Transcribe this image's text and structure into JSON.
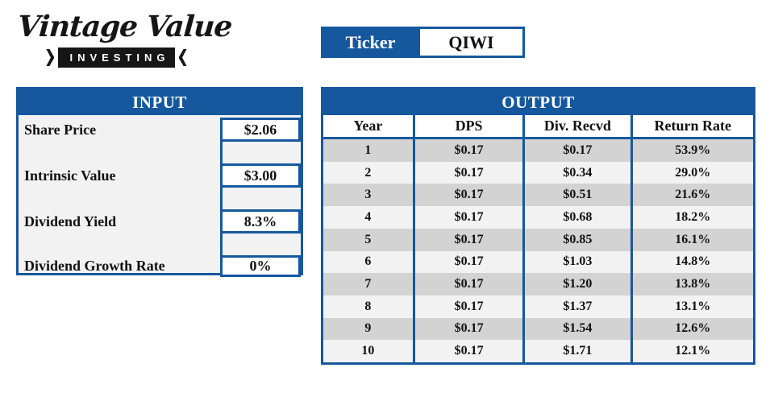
{
  "logo": {
    "title": "Vintage Value",
    "subtitle": "INVESTING"
  },
  "ticker": {
    "label": "Ticker",
    "value": "QIWI"
  },
  "input_panel": {
    "title": "INPUT",
    "fields": [
      {
        "label": "Share Price",
        "value": "$2.06"
      },
      {
        "label": "Intrinsic Value",
        "value": "$3.00"
      },
      {
        "label": "Dividend Yield",
        "value": "8.3%"
      },
      {
        "label": "Dividend Growth Rate",
        "value": "0%"
      }
    ]
  },
  "output_panel": {
    "title": "OUTPUT",
    "columns": [
      "Year",
      "DPS",
      "Div. Recvd",
      "Return Rate"
    ],
    "rows": [
      [
        "1",
        "$0.17",
        "$0.17",
        "53.9%"
      ],
      [
        "2",
        "$0.17",
        "$0.34",
        "29.0%"
      ],
      [
        "3",
        "$0.17",
        "$0.51",
        "21.6%"
      ],
      [
        "4",
        "$0.17",
        "$0.68",
        "18.2%"
      ],
      [
        "5",
        "$0.17",
        "$0.85",
        "16.1%"
      ],
      [
        "6",
        "$0.17",
        "$1.03",
        "14.8%"
      ],
      [
        "7",
        "$0.17",
        "$1.20",
        "13.8%"
      ],
      [
        "8",
        "$0.17",
        "$1.37",
        "13.1%"
      ],
      [
        "9",
        "$0.17",
        "$1.54",
        "12.6%"
      ],
      [
        "10",
        "$0.17",
        "$1.71",
        "12.1%"
      ]
    ]
  },
  "colors": {
    "accent_blue": "#15589E",
    "row_dark": "#D3D3D3",
    "row_light": "#F2F2F2",
    "banner_black": "#161616"
  }
}
